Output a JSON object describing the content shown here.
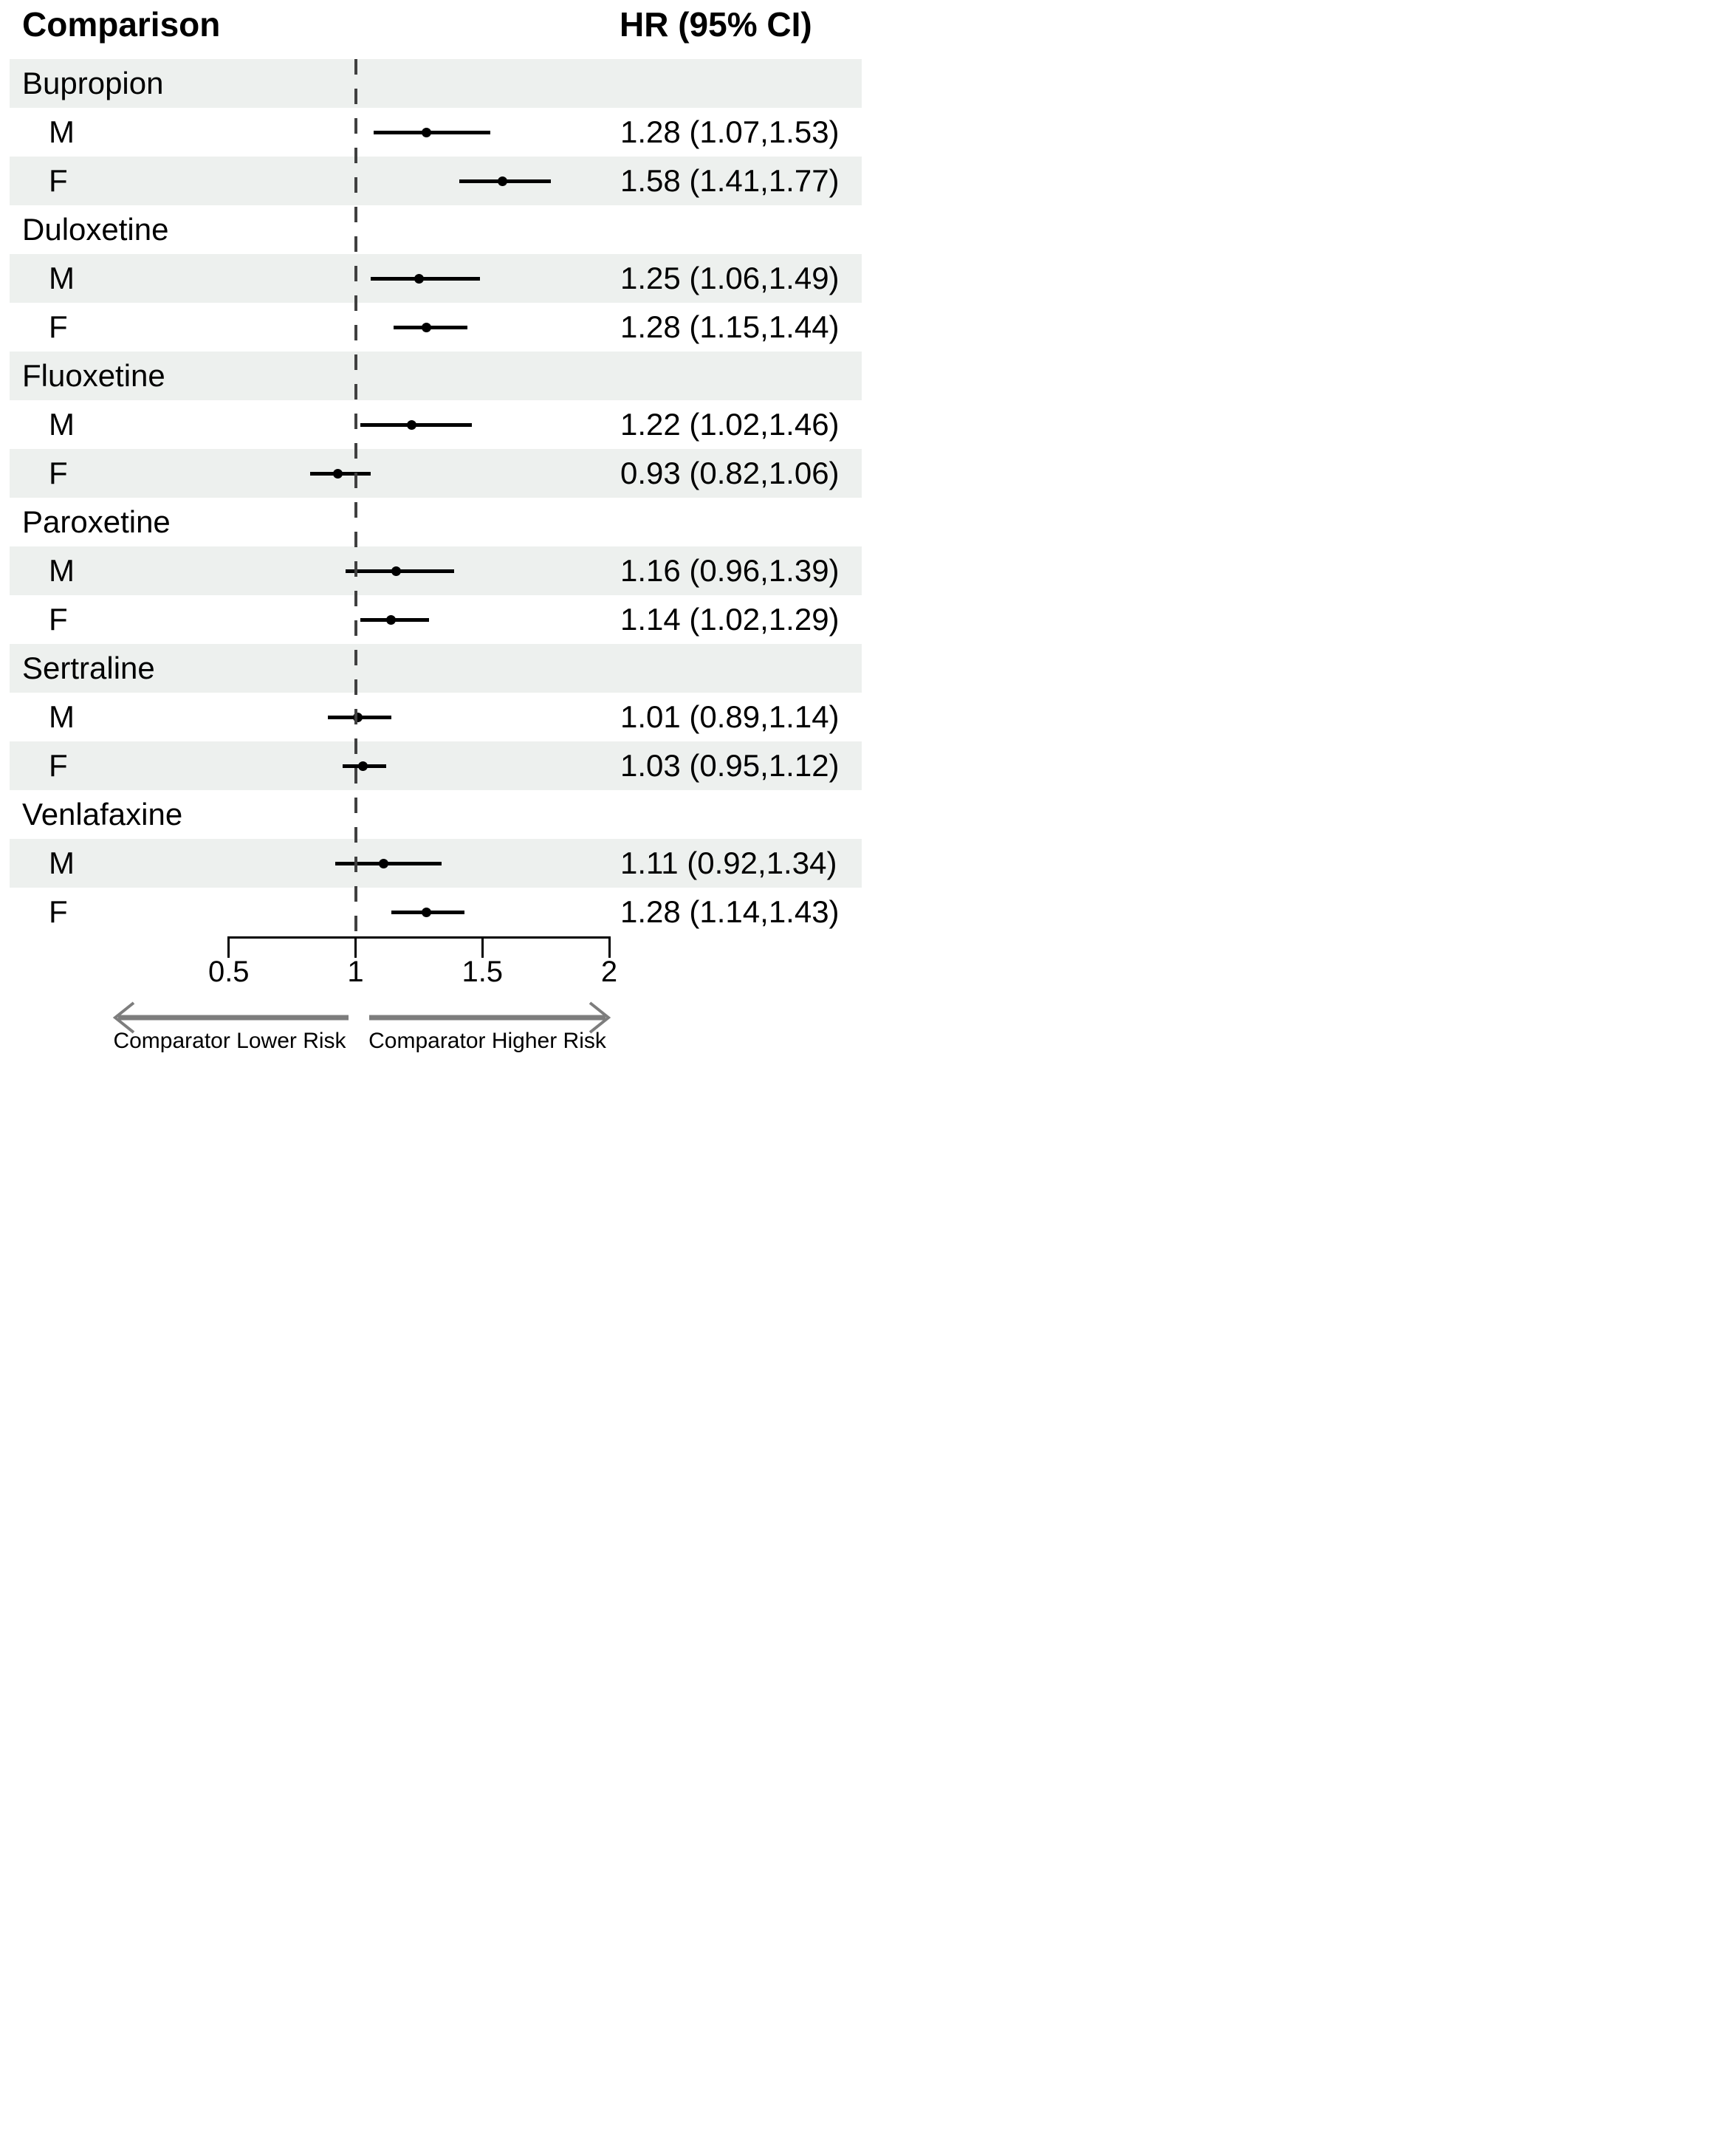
{
  "header": {
    "left": "Comparison",
    "right": "HR (95% CI)"
  },
  "footer": {
    "left_arrow_label": "Comparator Lower Risk",
    "right_arrow_label": "Comparator Higher Risk"
  },
  "chart_data": {
    "type": "forest",
    "title": "Comparison",
    "estimate_column_header": "HR (95% CI)",
    "xlim": [
      0.5,
      2
    ],
    "x_ticks": [
      {
        "value": 0.5,
        "label": "0.5"
      },
      {
        "value": 1,
        "label": "1"
      },
      {
        "value": 1.5,
        "label": "1.5"
      },
      {
        "value": 2,
        "label": "2"
      }
    ],
    "reference_line": 1,
    "grid": false,
    "legend_position": "none",
    "stripe_pattern": "alternating rows starting shaded at first group label",
    "arrow_annotations": {
      "left": "Comparator Lower Risk",
      "right": "Comparator Higher Risk"
    },
    "groups": [
      {
        "drug": "Bupropion",
        "rows": [
          {
            "sex": "M",
            "hr": 1.28,
            "lo": 1.07,
            "hi": 1.53,
            "label": "1.28 (1.07,1.53)"
          },
          {
            "sex": "F",
            "hr": 1.58,
            "lo": 1.41,
            "hi": 1.77,
            "label": "1.58 (1.41,1.77)"
          }
        ]
      },
      {
        "drug": "Duloxetine",
        "rows": [
          {
            "sex": "M",
            "hr": 1.25,
            "lo": 1.06,
            "hi": 1.49,
            "label": "1.25 (1.06,1.49)"
          },
          {
            "sex": "F",
            "hr": 1.28,
            "lo": 1.15,
            "hi": 1.44,
            "label": "1.28 (1.15,1.44)"
          }
        ]
      },
      {
        "drug": "Fluoxetine",
        "rows": [
          {
            "sex": "M",
            "hr": 1.22,
            "lo": 1.02,
            "hi": 1.46,
            "label": "1.22 (1.02,1.46)"
          },
          {
            "sex": "F",
            "hr": 0.93,
            "lo": 0.82,
            "hi": 1.06,
            "label": "0.93 (0.82,1.06)"
          }
        ]
      },
      {
        "drug": "Paroxetine",
        "rows": [
          {
            "sex": "M",
            "hr": 1.16,
            "lo": 0.96,
            "hi": 1.39,
            "label": "1.16 (0.96,1.39)"
          },
          {
            "sex": "F",
            "hr": 1.14,
            "lo": 1.02,
            "hi": 1.29,
            "label": "1.14 (1.02,1.29)"
          }
        ]
      },
      {
        "drug": "Sertraline",
        "rows": [
          {
            "sex": "M",
            "hr": 1.01,
            "lo": 0.89,
            "hi": 1.14,
            "label": "1.01 (0.89,1.14)"
          },
          {
            "sex": "F",
            "hr": 1.03,
            "lo": 0.95,
            "hi": 1.12,
            "label": "1.03 (0.95,1.12)"
          }
        ]
      },
      {
        "drug": "Venlafaxine",
        "rows": [
          {
            "sex": "M",
            "hr": 1.11,
            "lo": 0.92,
            "hi": 1.34,
            "label": "1.11 (0.92,1.34)"
          },
          {
            "sex": "F",
            "hr": 1.28,
            "lo": 1.14,
            "hi": 1.43,
            "label": "1.28 (1.14,1.43)"
          }
        ]
      }
    ],
    "colors": {
      "stripe": "#edf0ee",
      "marker": "#000000",
      "ci": "#000000",
      "reference_line": "#404040",
      "arrow": "#7d7d7d",
      "text": "#000000"
    }
  }
}
